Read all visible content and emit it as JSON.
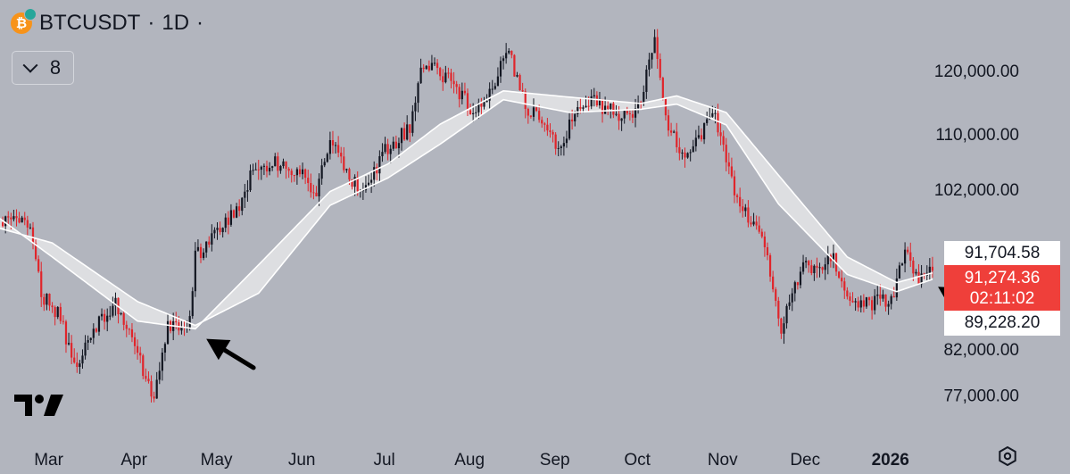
{
  "header": {
    "symbol": "BTCUSDT",
    "separator1": "·",
    "interval": "1D",
    "separator2": "·",
    "coin_glyph": "₿",
    "coin_icon": "bitcoin-icon"
  },
  "indicator_toggle": {
    "icon": "chevron-down-icon",
    "count": "8"
  },
  "logo": "tradingview-logo",
  "price_tags": {
    "upper": "91,704.58",
    "last_price": "91,274.36",
    "countdown": "02:11:02",
    "lower": "89,228.20"
  },
  "settings_icon": "gear-icon",
  "colors": {
    "background": "#b2b5be",
    "up_candle": "#131722",
    "down_candle": "#e0252b",
    "ma_line": "#ffffff",
    "ma_fill": "#e4e5e8",
    "last_price_tag": "#ef3f3a",
    "arrows": "#000000"
  },
  "chart_data": {
    "type": "candlestick",
    "title": "BTCUSDT · 1D",
    "xlabel": "",
    "ylabel": "",
    "y_scale": "log",
    "ylim": [
      72500,
      128000
    ],
    "y_ticks": [
      120000,
      110000,
      102000,
      82000,
      77000
    ],
    "y_tick_labels": [
      "120,000.00",
      "110,000.00",
      "102,000.00",
      "82,000.00",
      "77,000.00"
    ],
    "x_range": [
      "2025-02-10",
      "2026-01-16"
    ],
    "x_ticks": [
      {
        "date": "2025-03-01",
        "label": "Mar"
      },
      {
        "date": "2025-04-01",
        "label": "Apr"
      },
      {
        "date": "2025-05-01",
        "label": "May"
      },
      {
        "date": "2025-06-01",
        "label": "Jun"
      },
      {
        "date": "2025-07-01",
        "label": "Jul"
      },
      {
        "date": "2025-08-01",
        "label": "Aug"
      },
      {
        "date": "2025-09-01",
        "label": "Sep"
      },
      {
        "date": "2025-10-01",
        "label": "Oct"
      },
      {
        "date": "2025-11-01",
        "label": "Nov"
      },
      {
        "date": "2025-12-01",
        "label": "Dec"
      },
      {
        "date": "2026-01-01",
        "label": "2026",
        "bold": true
      }
    ],
    "close_path": [
      [
        "2025-02-10",
        97500
      ],
      [
        "2025-02-20",
        97800
      ],
      [
        "2025-02-25",
        88500
      ],
      [
        "2025-03-03",
        86000
      ],
      [
        "2025-03-10",
        80000
      ],
      [
        "2025-03-15",
        84000
      ],
      [
        "2025-03-24",
        87500
      ],
      [
        "2025-03-31",
        82500
      ],
      [
        "2025-04-07",
        76500
      ],
      [
        "2025-04-12",
        84500
      ],
      [
        "2025-04-20",
        85500
      ],
      [
        "2025-04-22",
        93000
      ],
      [
        "2025-05-01",
        96500
      ],
      [
        "2025-05-08",
        99500
      ],
      [
        "2025-05-12",
        104000
      ],
      [
        "2025-05-20",
        106000
      ],
      [
        "2025-05-30",
        104500
      ],
      [
        "2025-06-05",
        101500
      ],
      [
        "2025-06-10",
        110000
      ],
      [
        "2025-06-15",
        105000
      ],
      [
        "2025-06-22",
        101000
      ],
      [
        "2025-06-30",
        107500
      ],
      [
        "2025-07-09",
        111000
      ],
      [
        "2025-07-14",
        121500
      ],
      [
        "2025-07-24",
        118500
      ],
      [
        "2025-08-02",
        113000
      ],
      [
        "2025-08-14",
        123000
      ],
      [
        "2025-08-20",
        114500
      ],
      [
        "2025-09-01",
        108500
      ],
      [
        "2025-09-12",
        115500
      ],
      [
        "2025-09-22",
        113000
      ],
      [
        "2025-09-30",
        114000
      ],
      [
        "2025-10-06",
        124500
      ],
      [
        "2025-10-11",
        111500
      ],
      [
        "2025-10-17",
        106500
      ],
      [
        "2025-10-28",
        113000
      ],
      [
        "2025-11-04",
        101500
      ],
      [
        "2025-11-14",
        95500
      ],
      [
        "2025-11-21",
        84500
      ],
      [
        "2025-11-28",
        91500
      ],
      [
        "2025-12-10",
        92500
      ],
      [
        "2025-12-18",
        87000
      ],
      [
        "2025-12-31",
        87800
      ],
      [
        "2026-01-05",
        93500
      ],
      [
        "2026-01-10",
        90500
      ],
      [
        "2026-01-15",
        91274.36
      ]
    ],
    "moving_average_ribbon": [
      {
        "date": "2025-02-10",
        "fast": 98000,
        "slow": 96700
      },
      {
        "date": "2025-03-01",
        "fast": 93000,
        "slow": 94800
      },
      {
        "date": "2025-04-01",
        "fast": 85200,
        "slow": 87500
      },
      {
        "date": "2025-04-22",
        "fast": 84300,
        "slow": 84700
      },
      {
        "date": "2025-05-15",
        "fast": 92000,
        "slow": 88500
      },
      {
        "date": "2025-06-10",
        "fast": 101700,
        "slow": 99800
      },
      {
        "date": "2025-07-01",
        "fast": 105600,
        "slow": 103600
      },
      {
        "date": "2025-07-20",
        "fast": 111500,
        "slow": 108500
      },
      {
        "date": "2025-08-12",
        "fast": 116700,
        "slow": 115300
      },
      {
        "date": "2025-09-05",
        "fast": 115700,
        "slow": 113300
      },
      {
        "date": "2025-10-01",
        "fast": 114700,
        "slow": 113800
      },
      {
        "date": "2025-10-14",
        "fast": 115900,
        "slow": 114600
      },
      {
        "date": "2025-11-01",
        "fast": 113300,
        "slow": 111400
      },
      {
        "date": "2025-11-20",
        "fast": 104000,
        "slow": 100000
      },
      {
        "date": "2025-12-15",
        "fast": 93000,
        "slow": 90800
      },
      {
        "date": "2026-01-02",
        "fast": 89800,
        "slow": 88700
      },
      {
        "date": "2026-01-15",
        "fast": 91000,
        "slow": 90200
      }
    ],
    "price_lines": [
      91704.58,
      89228.2
    ],
    "last_price": 91274.36,
    "annotations": [
      {
        "type": "arrow",
        "points_to_date": "2025-04-26",
        "points_to_price": 85000
      },
      {
        "type": "arrow",
        "points_to_date": "2026-01-17",
        "points_to_price": 91274.36
      }
    ],
    "grid": false,
    "legend": "none"
  }
}
